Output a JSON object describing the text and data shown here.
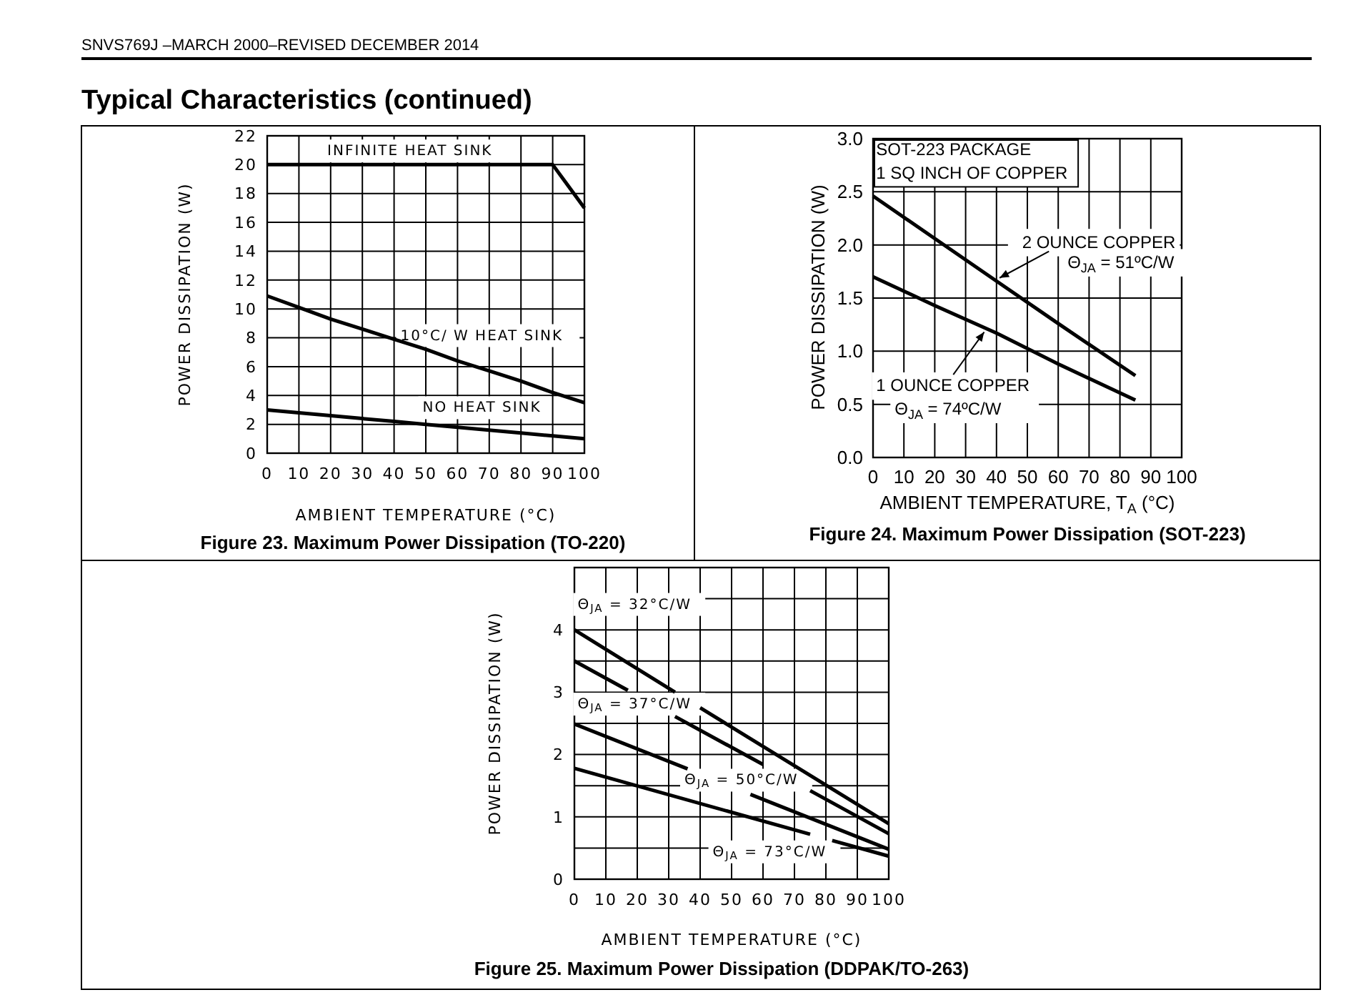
{
  "chart_data": [
    {
      "type": "line",
      "title": "Figure 23. Maximum Power Dissipation (TO-220)",
      "xlabel": "AMBIENT TEMPERATURE (°C)",
      "ylabel": "POWER DISSIPATION (W)",
      "xlim": [
        0,
        100
      ],
      "ylim": [
        0,
        22
      ],
      "xticks": [
        0,
        10,
        20,
        30,
        40,
        50,
        60,
        70,
        80,
        90,
        100
      ],
      "yticks": [
        0,
        2,
        4,
        6,
        8,
        10,
        12,
        14,
        16,
        18,
        20,
        22
      ],
      "grid": true,
      "annotations": [
        "Typical Characteristics (continued)",
        "SNVS769J –MARCH 2000–REVISED DECEMBER 2014"
      ],
      "series": [
        {
          "name": "INFINITE HEAT SINK",
          "color": "#000000",
          "x": [
            0,
            90,
            100
          ],
          "values": [
            20,
            20,
            17
          ]
        },
        {
          "name": "10°C/ W HEAT SINK",
          "color": "#000000",
          "x": [
            0,
            10,
            20,
            30,
            40,
            50,
            60,
            70,
            80,
            90,
            100
          ],
          "values": [
            10.9,
            10.1,
            9.3,
            8.6,
            7.9,
            7.2,
            6.4,
            5.7,
            5.0,
            4.2,
            3.5
          ]
        },
        {
          "name": "NO HEAT SINK",
          "color": "#000000",
          "x": [
            0,
            10,
            20,
            30,
            40,
            50,
            60,
            70,
            80,
            90,
            100
          ],
          "values": [
            3.0,
            2.8,
            2.6,
            2.4,
            2.2,
            2.0,
            1.8,
            1.6,
            1.4,
            1.2,
            1.0
          ]
        }
      ]
    },
    {
      "type": "line",
      "title": "Figure 24. Maximum Power Dissipation (SOT-223)",
      "xlabel": "AMBIENT TEMPERATURE, T$_{A}$ (°C)",
      "ylabel": "POWER DISSIPATION (W)",
      "xlim": [
        0,
        100
      ],
      "ylim": [
        0,
        3
      ],
      "xticks": [
        0,
        10,
        20,
        30,
        40,
        50,
        60,
        70,
        80,
        90,
        100
      ],
      "yticks": [
        {
          "value": 0,
          "label": "0.0"
        },
        0.5,
        {
          "value": 1,
          "label": "1.0"
        },
        1.5,
        {
          "value": 2,
          "label": "2.0"
        },
        2.5,
        {
          "value": 3,
          "label": "3.0"
        }
      ],
      "grid": true,
      "annotations": [
        "SOT-223 PACKAGE",
        "1 SQ INCH OF COPPER",
        "Θ$_{JA}$ = 51ºC/W",
        "Θ$_{JA}$ = 74ºC/W"
      ],
      "series": [
        {
          "name": "2 OUNCE COPPER",
          "color": "#000000",
          "x": [
            0,
            20,
            40,
            60,
            85
          ],
          "values": [
            2.46,
            2.06,
            1.66,
            1.26,
            0.77
          ]
        },
        {
          "name": "1 OUNCE COPPER",
          "color": "#000000",
          "x": [
            0,
            20,
            40,
            60,
            85
          ],
          "values": [
            1.7,
            1.43,
            1.17,
            0.88,
            0.54
          ]
        }
      ]
    },
    {
      "type": "line",
      "title": "Figure 25. Maximum Power Dissipation (DDPAK/TO-263)",
      "xlabel": "AMBIENT TEMPERATURE (°C)",
      "ylabel": "POWER DISSIPATION (W)",
      "xlim": [
        0,
        100
      ],
      "ylim": [
        0,
        5
      ],
      "xticks": [
        0,
        10,
        20,
        30,
        40,
        50,
        60,
        70,
        80,
        90,
        100
      ],
      "yticks": [
        0,
        {
          "value": 0.5,
          "label": null
        },
        1,
        {
          "value": 1.5,
          "label": null
        },
        2,
        {
          "value": 2.5,
          "label": null
        },
        3,
        {
          "value": 3.5,
          "label": null
        },
        4,
        {
          "value": 4.5,
          "label": null
        },
        {
          "value": 5,
          "label": null
        }
      ],
      "grid": true,
      "series": [
        {
          "name": "Θ$_{JA}$ = 32°C/W",
          "color": "#000000",
          "x": [
            0,
            32,
            36,
            40,
            100
          ],
          "values": [
            4.0,
            3.0,
            null,
            2.75,
            0.89
          ]
        },
        {
          "name": "Θ$_{JA}$ = 37°C/W",
          "color": "#000000",
          "x": [
            0,
            17,
            25,
            32,
            60,
            68,
            75,
            100
          ],
          "values": [
            3.5,
            3.03,
            null,
            2.61,
            1.84,
            null,
            1.42,
            0.73
          ]
        },
        {
          "name": "Θ$_{JA}$ = 50°C/W",
          "color": "#000000",
          "x": [
            0,
            36,
            46,
            56,
            100
          ],
          "values": [
            2.49,
            1.77,
            null,
            1.36,
            0.48
          ]
        },
        {
          "name": "Θ$_{JA}$ = 73°C/W",
          "color": "#000000",
          "x": [
            0,
            75,
            78,
            82,
            100
          ],
          "values": [
            1.78,
            0.72,
            null,
            0.62,
            0.37
          ]
        }
      ]
    }
  ]
}
